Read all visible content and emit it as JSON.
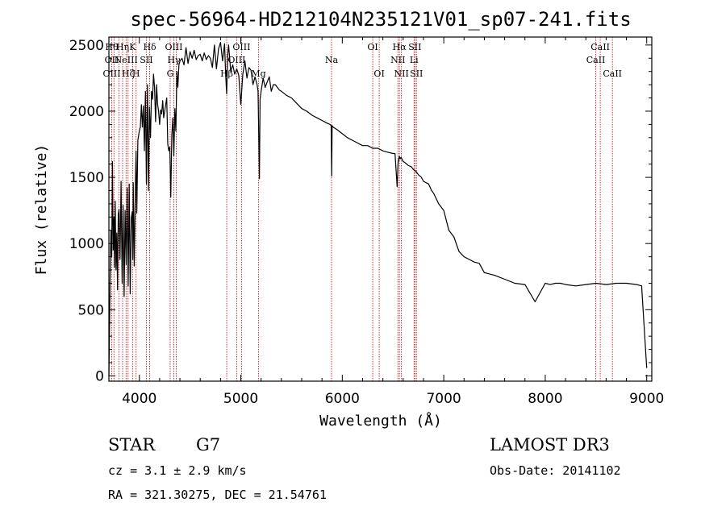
{
  "chart_data": {
    "type": "line",
    "title": "spec-56964-HD212104N235121V01_sp07-241.fits",
    "xlabel": "Wavelength (Å)",
    "ylabel": "Flux (relative)",
    "xlim": [
      3700,
      9050
    ],
    "ylim": [
      -40,
      2560
    ],
    "x_ticks": [
      4000,
      5000,
      6000,
      7000,
      8000,
      9000
    ],
    "x_tick_labels": [
      "4000",
      "5000",
      "6000",
      "7000",
      "8000",
      "9000"
    ],
    "y_ticks": [
      0,
      500,
      1000,
      1500,
      2000,
      2500
    ],
    "y_tick_labels": [
      "0",
      "500",
      "1000",
      "1500",
      "2000",
      "2500"
    ],
    "grid": false,
    "series": [
      {
        "name": "spectrum",
        "color": "#000000",
        "x": [
          3700,
          3705,
          3712,
          3720,
          3728,
          3735,
          3742,
          3750,
          3755,
          3762,
          3770,
          3778,
          3785,
          3792,
          3800,
          3810,
          3820,
          3830,
          3840,
          3850,
          3860,
          3870,
          3880,
          3890,
          3900,
          3910,
          3920,
          3930,
          3935,
          3940,
          3950,
          3960,
          3968,
          3975,
          3985,
          4000,
          4010,
          4020,
          4030,
          4040,
          4050,
          4060,
          4070,
          4080,
          4090,
          4100,
          4110,
          4120,
          4130,
          4140,
          4150,
          4160,
          4170,
          4180,
          4190,
          4200,
          4210,
          4220,
          4230,
          4240,
          4250,
          4260,
          4270,
          4280,
          4290,
          4300,
          4310,
          4320,
          4330,
          4340,
          4350,
          4360,
          4370,
          4380,
          4390,
          4400,
          4420,
          4440,
          4460,
          4480,
          4500,
          4520,
          4540,
          4560,
          4580,
          4600,
          4620,
          4640,
          4660,
          4680,
          4700,
          4720,
          4740,
          4760,
          4780,
          4800,
          4820,
          4840,
          4850,
          4861,
          4870,
          4880,
          4900,
          4920,
          4940,
          4960,
          4980,
          5000,
          5020,
          5040,
          5060,
          5080,
          5100,
          5120,
          5140,
          5160,
          5170,
          5183,
          5190,
          5200,
          5220,
          5240,
          5260,
          5280,
          5300,
          5320,
          5340,
          5360,
          5380,
          5400,
          5450,
          5500,
          5550,
          5600,
          5650,
          5700,
          5750,
          5800,
          5850,
          5880,
          5890,
          5896,
          5900,
          5910,
          5950,
          6000,
          6050,
          6100,
          6150,
          6200,
          6250,
          6300,
          6350,
          6400,
          6450,
          6500,
          6520,
          6540,
          6550,
          6563,
          6570,
          6580,
          6600,
          6620,
          6650,
          6680,
          6700,
          6720,
          6750,
          6780,
          6800,
          6850,
          6880,
          6900,
          6950,
          7000,
          7050,
          7100,
          7150,
          7200,
          7250,
          7300,
          7350,
          7400,
          7500,
          7600,
          7700,
          7800,
          7900,
          8000,
          8050,
          8100,
          8150,
          8200,
          8300,
          8400,
          8500,
          8600,
          8700,
          8800,
          8900,
          8950,
          9000
        ],
        "y": [
          0,
          280,
          750,
          1100,
          900,
          1620,
          950,
          1200,
          820,
          1320,
          800,
          1080,
          650,
          1220,
          1260,
          880,
          1470,
          700,
          1290,
          600,
          1250,
          840,
          1420,
          680,
          1450,
          620,
          1190,
          1240,
          880,
          1460,
          830,
          1380,
          1700,
          1230,
          1780,
          1850,
          1880,
          2050,
          1880,
          2040,
          1700,
          2150,
          1450,
          2200,
          1400,
          2030,
          1800,
          2150,
          2090,
          2280,
          2180,
          1920,
          2200,
          2050,
          2000,
          1900,
          2010,
          1980,
          2080,
          1950,
          2000,
          2050,
          2100,
          1750,
          1700,
          1730,
          1350,
          1820,
          1950,
          1660,
          2020,
          1850,
          2300,
          2180,
          2350,
          2380,
          2400,
          2350,
          2480,
          2360,
          2450,
          2400,
          2460,
          2390,
          2420,
          2430,
          2380,
          2440,
          2390,
          2420,
          2400,
          2330,
          2500,
          2320,
          2470,
          2520,
          2380,
          2510,
          2280,
          2130,
          2420,
          2500,
          2300,
          2350,
          2280,
          2320,
          2270,
          2050,
          2280,
          2380,
          2250,
          2330,
          2310,
          2200,
          2260,
          2200,
          2150,
          1490,
          2090,
          2150,
          2250,
          2180,
          2220,
          2260,
          2150,
          2200,
          2200,
          2180,
          2160,
          2150,
          2120,
          2100,
          2060,
          2020,
          2000,
          1970,
          1950,
          1930,
          1910,
          1900,
          1890,
          1510,
          1890,
          1880,
          1860,
          1830,
          1800,
          1780,
          1760,
          1740,
          1740,
          1720,
          1720,
          1700,
          1690,
          1680,
          1680,
          1430,
          1610,
          1660,
          1640,
          1650,
          1620,
          1610,
          1590,
          1580,
          1560,
          1550,
          1520,
          1500,
          1470,
          1450,
          1400,
          1380,
          1300,
          1250,
          1100,
          1050,
          940,
          900,
          880,
          860,
          850,
          780,
          760,
          730,
          700,
          690,
          560,
          700,
          690,
          700,
          700,
          690,
          680,
          690,
          700,
          690,
          700,
          700,
          690,
          680,
          60
        ]
      }
    ],
    "lines": [
      {
        "wavelength": 3728,
        "top": "Hθ",
        "mid": "OII",
        "bottom": "OIII",
        "color": "#cc0000"
      },
      {
        "wavelength": 3750,
        "top": "",
        "mid": "",
        "bottom": "",
        "color": "#cc0000"
      },
      {
        "wavelength": 3798,
        "top": "",
        "mid": "",
        "bottom": "",
        "color": "#cc0000"
      },
      {
        "wavelength": 3835,
        "top": "Hη",
        "mid": "",
        "bottom": "",
        "color": "#cc0000"
      },
      {
        "wavelength": 3869,
        "top": "",
        "mid": "NeIII",
        "bottom": "",
        "color": "#cc0000"
      },
      {
        "wavelength": 3889,
        "top": "",
        "mid": "",
        "bottom": "Hζ",
        "color": "#cc0000"
      },
      {
        "wavelength": 3933,
        "top": "K",
        "mid": "",
        "bottom": "",
        "color": "#cc0000"
      },
      {
        "wavelength": 3968,
        "top": "",
        "mid": "",
        "bottom": "H",
        "color": "#cc0000"
      },
      {
        "wavelength": 4070,
        "top": "",
        "mid": "SII",
        "bottom": "",
        "color": "#cc0000"
      },
      {
        "wavelength": 4102,
        "top": "Hδ",
        "mid": "",
        "bottom": "",
        "color": "#cc0000"
      },
      {
        "wavelength": 4304,
        "top": "",
        "mid": "",
        "bottom": "G",
        "color": "#cc0000"
      },
      {
        "wavelength": 4340,
        "top": "OIII",
        "mid": "Hγ",
        "bottom": "",
        "color": "#cc0000"
      },
      {
        "wavelength": 4363,
        "top": "",
        "mid": "",
        "bottom": "",
        "color": "#cc0000"
      },
      {
        "wavelength": 4861,
        "top": "",
        "mid": "",
        "bottom": "Hβ",
        "color": "#cc0000"
      },
      {
        "wavelength": 4959,
        "top": "",
        "mid": "OIII",
        "bottom": "",
        "color": "#cc0000"
      },
      {
        "wavelength": 5007,
        "top": "OIII",
        "mid": "",
        "bottom": "",
        "color": "#cc0000"
      },
      {
        "wavelength": 5175,
        "top": "",
        "mid": "",
        "bottom": "Mg",
        "color": "#cc0000"
      },
      {
        "wavelength": 5894,
        "top": "",
        "mid": "Na",
        "bottom": "",
        "color": "#cc0000"
      },
      {
        "wavelength": 6300,
        "top": "OI",
        "mid": "",
        "bottom": "",
        "color": "#cc0000"
      },
      {
        "wavelength": 6364,
        "top": "",
        "mid": "",
        "bottom": "OI",
        "color": "#cc0000"
      },
      {
        "wavelength": 6548,
        "top": "",
        "mid": "NII",
        "bottom": "",
        "color": "#cc0000"
      },
      {
        "wavelength": 6563,
        "top": "Hα",
        "mid": "",
        "bottom": "",
        "color": "#cc0000"
      },
      {
        "wavelength": 6583,
        "top": "",
        "mid": "",
        "bottom": "NII",
        "color": "#cc0000"
      },
      {
        "wavelength": 6707,
        "top": "",
        "mid": "Li",
        "bottom": "",
        "color": "#cc0000"
      },
      {
        "wavelength": 6716,
        "top": "SII",
        "mid": "",
        "bottom": "",
        "color": "#cc0000"
      },
      {
        "wavelength": 6731,
        "top": "",
        "mid": "",
        "bottom": "SII",
        "color": "#cc0000"
      },
      {
        "wavelength": 8498,
        "top": "",
        "mid": "CaII",
        "bottom": "",
        "color": "#cc0000"
      },
      {
        "wavelength": 8542,
        "top": "CaII",
        "mid": "",
        "bottom": "",
        "color": "#cc0000"
      },
      {
        "wavelength": 8662,
        "top": "",
        "mid": "",
        "bottom": "CaII",
        "color": "#cc0000"
      }
    ]
  },
  "info": {
    "object_class": "STAR",
    "subclass": "G7",
    "redshift": "cz = 3.1 ± 2.9 km/s",
    "coords": "RA = 321.30275, DEC =  21.54761",
    "survey": "LAMOST DR3",
    "obs_date": "Obs-Date: 20141102"
  }
}
